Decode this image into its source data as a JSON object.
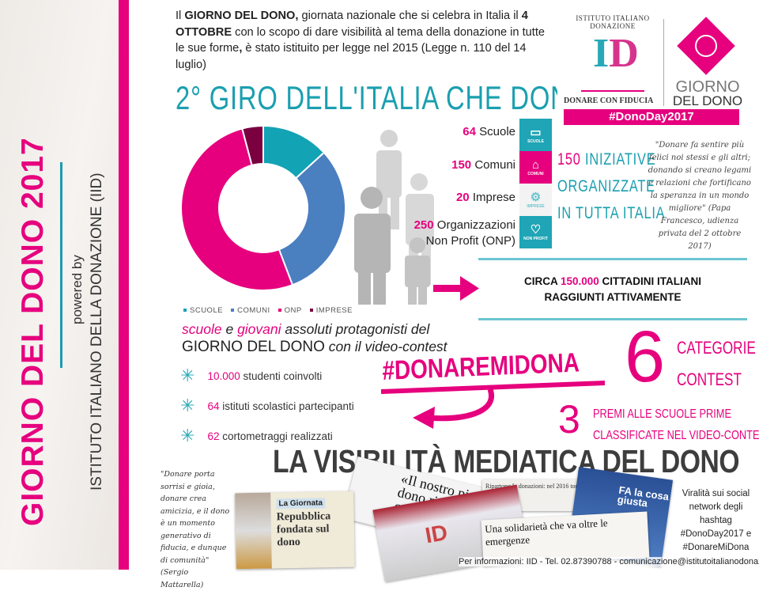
{
  "sidebar": {
    "title": "GIORNO DEL DONO 2017",
    "powered_by": "powered by",
    "institute": "ISTITUTO ITALIANO DELLA DONAZIONE (IID)"
  },
  "intro": {
    "t1": "Il ",
    "b1": "GIORNO DEL DONO,",
    "t2": " giornata nazionale che si celebra in Italia il ",
    "b2": "4 OTTOBRE",
    "t3": " con lo scopo di dare visibilità al tema della donazione in tutte le sue forme",
    "b3": ",",
    "t4": " è stato istituito per legge nel 2015 (Legge n. 110 del 14 luglio)"
  },
  "section_title": "2° GIRO DELL'ITALIA CHE DONA",
  "logo": {
    "arc_text": "ISTITUTO ITALIANO DONAZIONE",
    "monogram_i": "I",
    "monogram_d": "D",
    "tagline": "DONARE CON FIDUCIA",
    "giorno": "GIORNO",
    "del_dono": "DEL DONO",
    "hashtag": "#DonoDay2017"
  },
  "chart_data": {
    "type": "pie",
    "donut": true,
    "categories": [
      "SCUOLE",
      "COMUNI",
      "ONP",
      "IMPRESE"
    ],
    "values": [
      64,
      150,
      250,
      20
    ],
    "colors": [
      "#12a3b4",
      "#4a7fc0",
      "#e6007e",
      "#7a0040"
    ],
    "legend": "bottom"
  },
  "stats": [
    {
      "num": "64",
      "label": "Scuole"
    },
    {
      "num": "150",
      "label": "Comuni"
    },
    {
      "num": "20",
      "label": "Imprese"
    },
    {
      "num": "250",
      "label": "Organizzazioni",
      "label2": "Non Profit (ONP)"
    }
  ],
  "tiles": [
    {
      "icon": "book-icon",
      "glyph": "▭",
      "label": "SCUOLE",
      "color": "#1fa5b5"
    },
    {
      "icon": "building-icon",
      "glyph": "⌂",
      "label": "COMUNI",
      "color": "#e6007e"
    },
    {
      "icon": "gears-icon",
      "glyph": "⚙",
      "label": "IMPRESE",
      "color": "#ffffff"
    },
    {
      "icon": "heart-icon",
      "glyph": "♡",
      "label": "NON PROFIT",
      "color": "#1fa5b5"
    }
  ],
  "iniziative": {
    "num": "150",
    "l1": "INIZIATIVE",
    "l2": "ORGANIZZATE",
    "l3": "IN TUTTA ITALIA"
  },
  "papa_quote": "\"Donare fa sentire più felici noi stessi e gli altri; donando si creano legami e relazioni che fortificano la speranza in un mondo migliore\" (Papa Francesco, udienza privata del 2 ottobre 2017)",
  "reach": {
    "pre": "CIRCA ",
    "num": "150.000",
    "post": " CITTADINI ITALIANI",
    "line2": "RAGGIUNTI ATTIVAMENTE"
  },
  "contest_intro": {
    "w1": "scuole",
    "w2": " e ",
    "w3": "giovani",
    "w4": " assoluti protagonisti del",
    "line2a": "GIORNO DEL DONO",
    "line2b": " con il video-contest"
  },
  "bullets": [
    {
      "num": "10.000",
      "text": " studenti coinvolti"
    },
    {
      "num": "64",
      "text": " istituti scolastici partecipanti"
    },
    {
      "num": "62",
      "text": " cortometraggi realizzati"
    }
  ],
  "hashtag_contest": "#DONAREMIDONA",
  "categories": {
    "num": "6",
    "l1": "CATEGORIE",
    "l2": "CONTEST"
  },
  "prizes": {
    "num": "3",
    "l1": "PREMI ALLE SCUOLE PRIME",
    "l2": "CLASSIFICATE NEL VIDEO-CONTEST"
  },
  "media_title": "LA VISIBILITÀ MEDIATICA DEL DONO",
  "mattarella_quote": "\"Donare porta sorrisi e gioia, donare crea amicizia, e il dono è un momento generativo di fiducia, e dunque di comunità\" (Sergio Mattarella)",
  "clippings": {
    "c1_head": "La Giornata",
    "c1_title": "Repubblica fondata sul dono",
    "c2_title": "«Il nostro pianeta dono ricevuto da co",
    "c3_logo": "ID",
    "c4_title": "Ripartono le donazioni: nel 2016 tornate ai livelli pre-crisi",
    "c5_title": "Una solidarietà che va oltre le emergenze",
    "c6_title": "FA la cosa giusta"
  },
  "virality": "Viralità sui social network degli hashtag #DonoDay2017 e #DonareMiDona",
  "footer": "Per informazioni: IID - Tel. 02.87390788 - comunicazione@istitutoitalianodonazione.it",
  "colors": {
    "pink": "#e6007e",
    "teal": "#1a9fb0",
    "dark": "#3d3d3d"
  }
}
